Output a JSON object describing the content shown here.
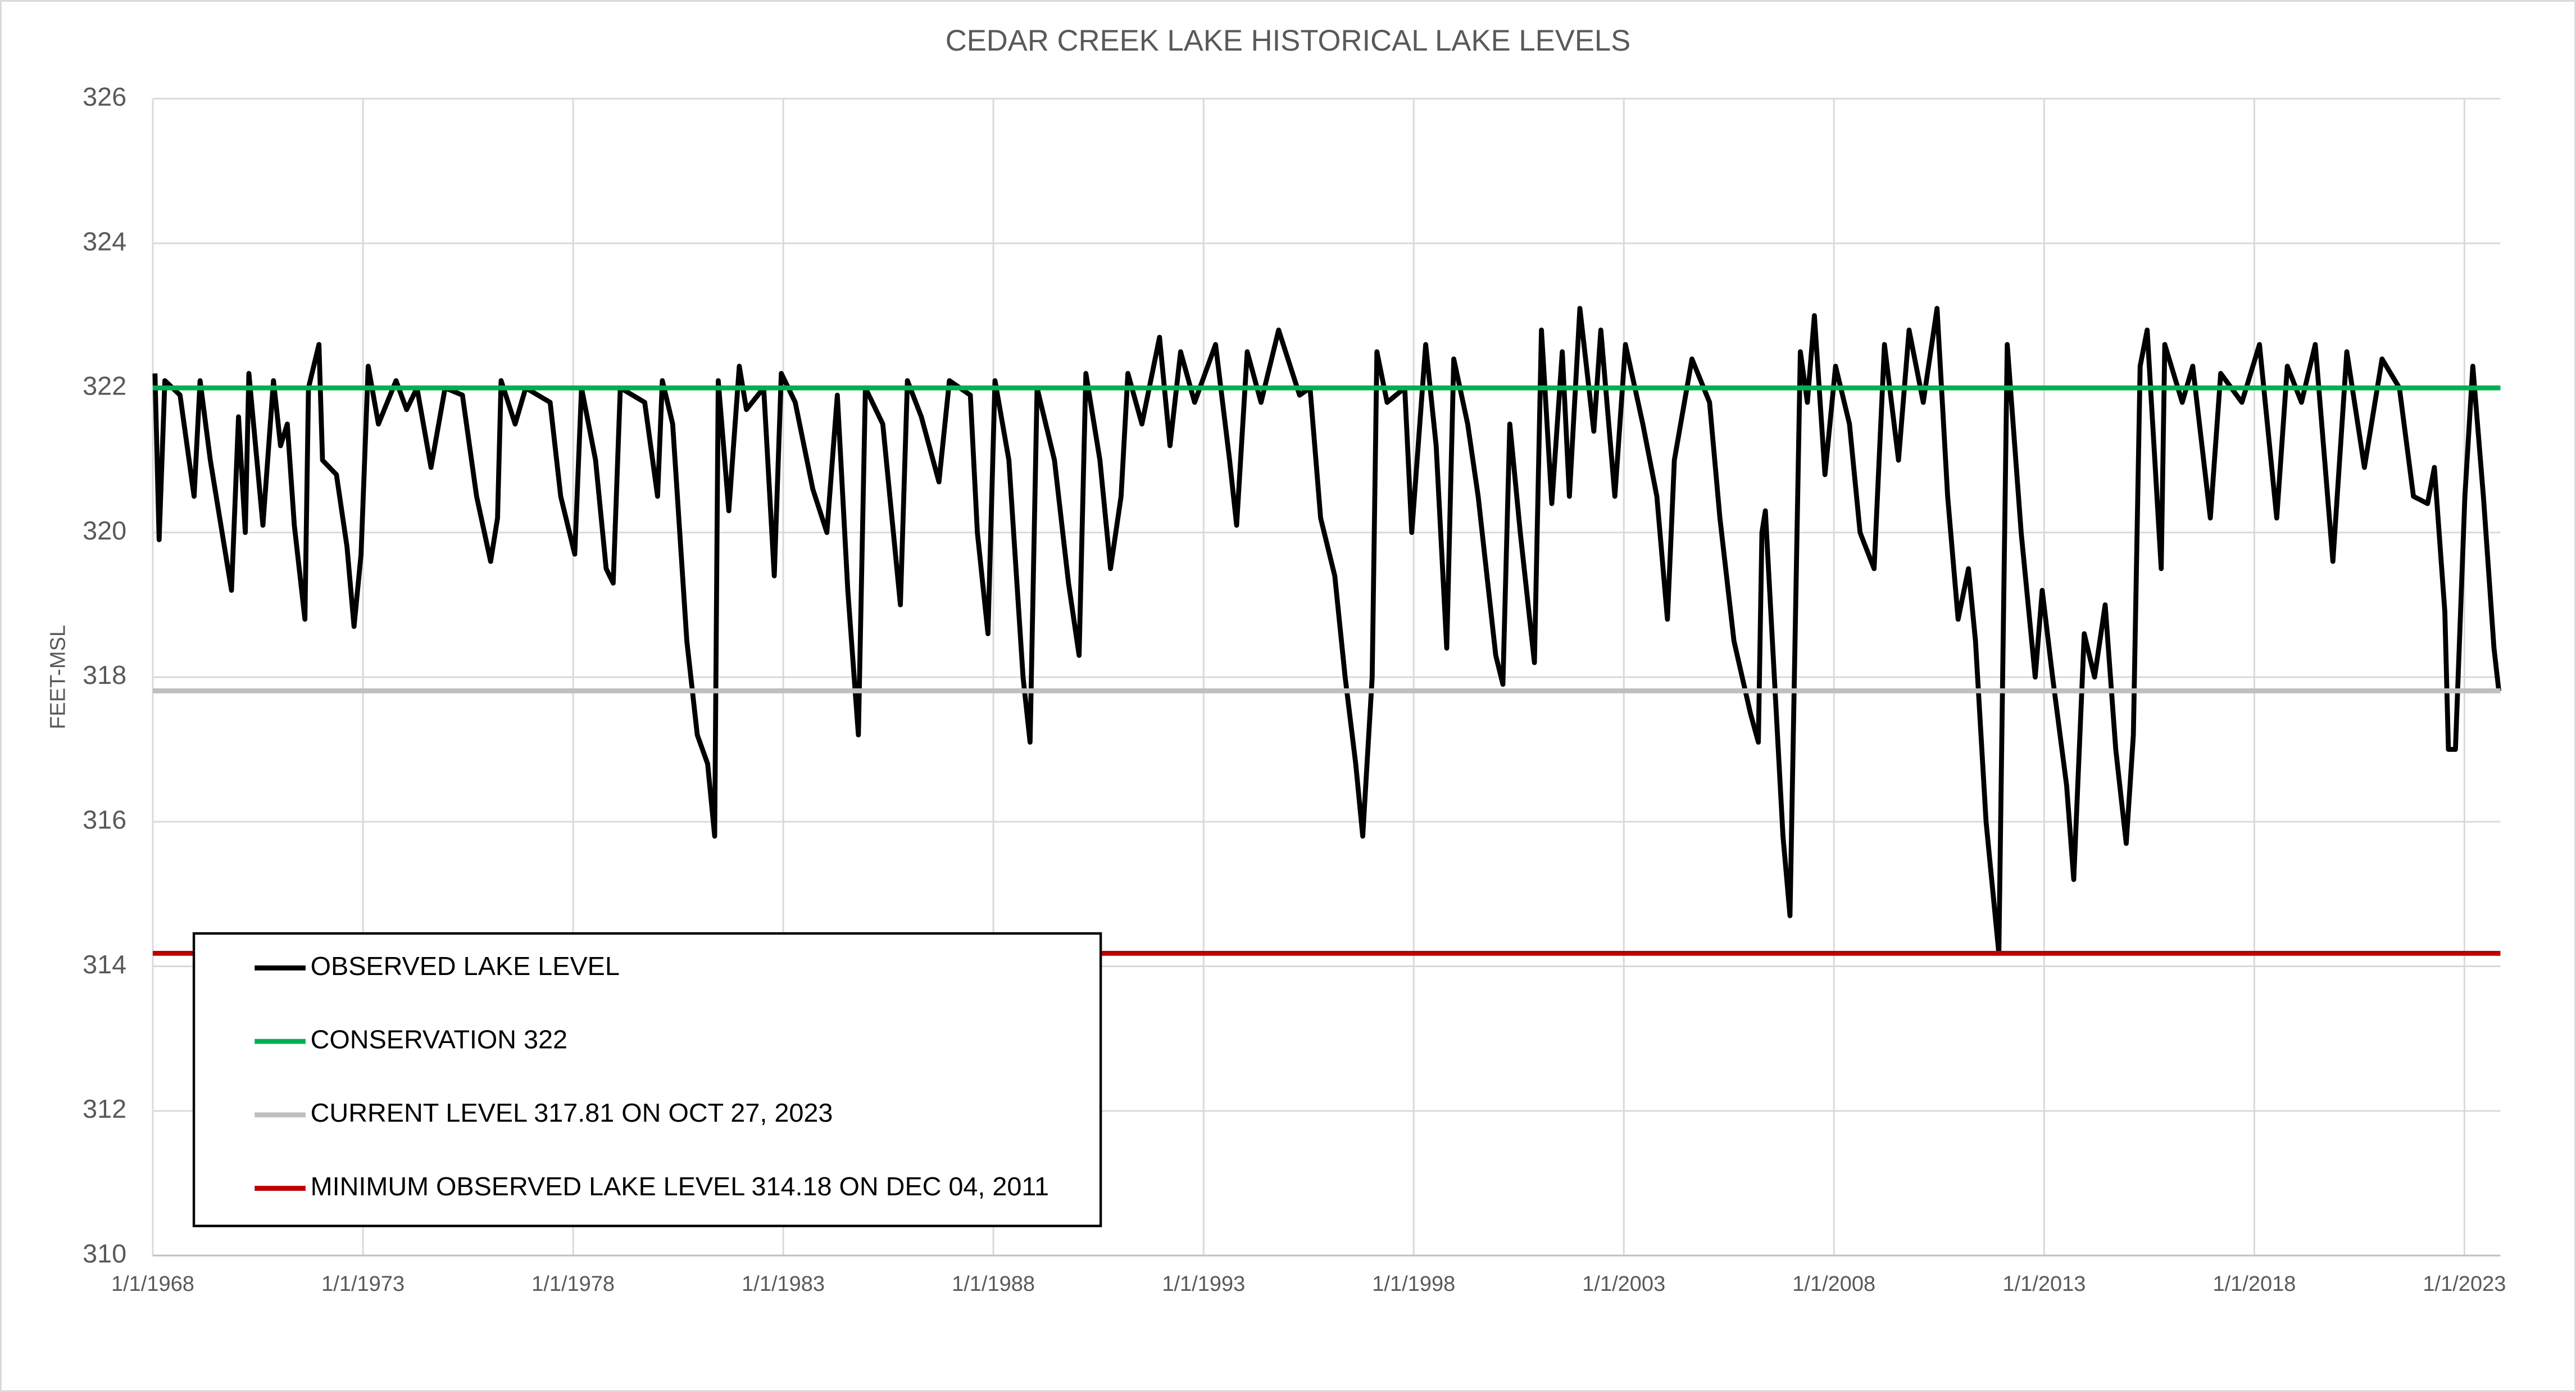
{
  "chart_data": {
    "type": "line",
    "title": "CEDAR CREEK LAKE HISTORICAL LAKE LEVELS",
    "y_label": "FEET-MSL",
    "grid": true,
    "legend_position": "bottom-left",
    "xlim": [
      "1968-01-01",
      "2023-11-10"
    ],
    "ylim": [
      310,
      326
    ],
    "yticks": [
      310,
      312,
      314,
      316,
      318,
      320,
      322,
      324,
      326
    ],
    "xticks": [
      {
        "value": "1968-01-01",
        "label": "1/1/1968"
      },
      {
        "value": "1973-01-01",
        "label": "1/1/1973"
      },
      {
        "value": "1978-01-01",
        "label": "1/1/1978"
      },
      {
        "value": "1983-01-01",
        "label": "1/1/1983"
      },
      {
        "value": "1988-01-01",
        "label": "1/1/1988"
      },
      {
        "value": "1993-01-01",
        "label": "1/1/1993"
      },
      {
        "value": "1998-01-01",
        "label": "1/1/1998"
      },
      {
        "value": "2003-01-01",
        "label": "1/1/2003"
      },
      {
        "value": "2008-01-01",
        "label": "1/1/2008"
      },
      {
        "value": "2013-01-01",
        "label": "1/1/2013"
      },
      {
        "value": "2018-01-01",
        "label": "1/1/2018"
      },
      {
        "value": "2023-01-01",
        "label": "1/1/2023"
      }
    ],
    "x": [
      "1968-01-20",
      "1968-02-25",
      "1968-04-15",
      "1968-08-25",
      "1968-12-25",
      "1969-02-15",
      "1969-05-15",
      "1969-11-15",
      "1970-01-15",
      "1970-03-15",
      "1970-04-15",
      "1970-08-15",
      "1970-11-15",
      "1971-01-15",
      "1971-03-15",
      "1971-05-15",
      "1971-08-15",
      "1971-09-15",
      "1971-12-15",
      "1972-01-15",
      "1972-05-15",
      "1972-08-15",
      "1972-10-15",
      "1972-12-15",
      "1973-02-15",
      "1973-05-15",
      "1973-10-15",
      "1974-01-15",
      "1974-04-15",
      "1974-08-15",
      "1974-12-15",
      "1975-05-15",
      "1975-09-15",
      "1976-01-15",
      "1976-03-15",
      "1976-04-15",
      "1976-08-15",
      "1976-11-15",
      "1977-06-15",
      "1977-09-15",
      "1978-01-15",
      "1978-03-15",
      "1978-07-15",
      "1978-10-15",
      "1978-12-15",
      "1979-02-15",
      "1979-09-15",
      "1980-01-05",
      "1980-02-15",
      "1980-05-15",
      "1980-09-15",
      "1980-12-15",
      "1981-03-15",
      "1981-05-15",
      "1981-06-15",
      "1981-09-15",
      "1981-12-15",
      "1982-02-15",
      "1982-07-15",
      "1982-10-15",
      "1982-12-15",
      "1983-04-15",
      "1983-09-15",
      "1984-01-15",
      "1984-04-15",
      "1984-07-15",
      "1984-10-15",
      "1984-12-15",
      "1985-05-15",
      "1985-08-15",
      "1985-10-15",
      "1985-12-15",
      "1986-04-15",
      "1986-09-15",
      "1986-12-15",
      "1987-06-15",
      "1987-08-15",
      "1987-11-15",
      "1988-01-15",
      "1988-05-15",
      "1988-09-15",
      "1988-11-15",
      "1989-01-15",
      "1989-06-15",
      "1989-10-15",
      "1990-01-15",
      "1990-03-15",
      "1990-07-15",
      "1990-10-15",
      "1991-01-15",
      "1991-03-15",
      "1991-07-15",
      "1991-12-15",
      "1992-03-15",
      "1992-06-15",
      "1992-10-15",
      "1993-04-15",
      "1993-08-15",
      "1993-10-15",
      "1994-01-15",
      "1994-05-15",
      "1994-10-15",
      "1995-04-15",
      "1995-07-15",
      "1995-10-15",
      "1996-02-15",
      "1996-05-15",
      "1996-08-15",
      "1996-10-15",
      "1997-01-05",
      "1997-02-15",
      "1997-05-15",
      "1997-10-15",
      "1997-12-15",
      "1998-04-15",
      "1998-07-15",
      "1998-10-15",
      "1998-12-15",
      "1999-04-15",
      "1999-07-15",
      "1999-12-15",
      "2000-02-15",
      "2000-04-15",
      "2000-07-15",
      "2000-11-15",
      "2001-01-15",
      "2001-04-15",
      "2001-07-15",
      "2001-09-15",
      "2001-12-15",
      "2002-04-15",
      "2002-06-15",
      "2002-10-15",
      "2003-01-15",
      "2003-06-15",
      "2003-10-15",
      "2004-01-15",
      "2004-03-15",
      "2004-08-15",
      "2005-01-15",
      "2005-04-15",
      "2005-08-15",
      "2006-01-05",
      "2006-03-15",
      "2006-04-15",
      "2006-05-15",
      "2006-07-15",
      "2006-10-15",
      "2006-12-15",
      "2007-03-15",
      "2007-05-15",
      "2007-07-15",
      "2007-10-15",
      "2008-01-15",
      "2008-05-15",
      "2008-08-15",
      "2008-12-15",
      "2009-03-15",
      "2009-07-15",
      "2009-10-15",
      "2010-02-15",
      "2010-06-15",
      "2010-09-15",
      "2010-12-15",
      "2011-03-15",
      "2011-05-15",
      "2011-08-15",
      "2011-12-04",
      "2012-02-15",
      "2012-06-15",
      "2012-10-15",
      "2012-12-15",
      "2013-03-15",
      "2013-07-15",
      "2013-09-15",
      "2013-12-15",
      "2014-03-15",
      "2014-06-15",
      "2014-09-15",
      "2014-12-15",
      "2015-02-15",
      "2015-04-15",
      "2015-06-15",
      "2015-10-15",
      "2015-11-15",
      "2016-04-15",
      "2016-07-15",
      "2016-12-15",
      "2017-03-15",
      "2017-09-15",
      "2018-02-15",
      "2018-07-15",
      "2018-10-15",
      "2019-02-15",
      "2019-06-15",
      "2019-11-15",
      "2020-03-15",
      "2020-08-15",
      "2021-01-15",
      "2021-06-15",
      "2021-10-15",
      "2022-02-15",
      "2022-04-15",
      "2022-07-15",
      "2022-08-15",
      "2022-10-15",
      "2023-01-05",
      "2023-03-15",
      "2023-06-15",
      "2023-09-15",
      "2023-10-27"
    ],
    "series": [
      {
        "name": "OBSERVED LAKE LEVEL",
        "color": "#000000",
        "values": [
          322.2,
          319.9,
          322.1,
          321.9,
          320.5,
          322.1,
          321.0,
          319.2,
          321.6,
          320.0,
          322.2,
          320.1,
          322.1,
          321.2,
          321.5,
          320.1,
          318.8,
          322.0,
          322.6,
          321.0,
          320.8,
          319.8,
          318.7,
          319.7,
          322.3,
          321.5,
          322.1,
          321.7,
          322.0,
          320.9,
          322.0,
          321.9,
          320.5,
          319.6,
          320.2,
          322.1,
          321.5,
          322.0,
          321.8,
          320.5,
          319.7,
          322.0,
          321.0,
          319.5,
          319.3,
          322.0,
          321.8,
          320.5,
          322.1,
          321.5,
          318.5,
          317.2,
          316.8,
          315.8,
          322.1,
          320.3,
          322.3,
          321.7,
          322.0,
          319.4,
          322.2,
          321.8,
          320.6,
          320.0,
          321.9,
          319.2,
          317.2,
          322.0,
          321.5,
          320.0,
          319.0,
          322.1,
          321.6,
          320.7,
          322.1,
          321.9,
          320.0,
          318.6,
          322.1,
          321.0,
          318.0,
          317.1,
          322.0,
          321.0,
          319.3,
          318.3,
          322.2,
          321.0,
          319.5,
          320.5,
          322.2,
          321.5,
          322.7,
          321.2,
          322.5,
          321.8,
          322.6,
          321.0,
          320.1,
          322.5,
          321.8,
          322.8,
          321.9,
          322.0,
          320.2,
          319.4,
          318.0,
          316.8,
          315.8,
          318.0,
          322.5,
          321.8,
          322.0,
          320.0,
          322.6,
          321.2,
          318.4,
          322.4,
          321.5,
          320.5,
          318.3,
          317.9,
          321.5,
          320.0,
          318.2,
          322.8,
          320.4,
          322.5,
          320.5,
          323.1,
          321.4,
          322.8,
          320.5,
          322.6,
          321.5,
          320.5,
          318.8,
          321.0,
          322.4,
          321.8,
          320.2,
          318.5,
          317.5,
          317.1,
          320.0,
          320.3,
          318.5,
          315.8,
          314.7,
          322.5,
          321.8,
          323.0,
          320.8,
          322.3,
          321.5,
          320.0,
          319.5,
          322.6,
          321.0,
          322.8,
          321.8,
          323.1,
          320.5,
          318.8,
          319.5,
          318.5,
          316.0,
          314.18,
          322.6,
          320.0,
          318.0,
          319.2,
          318.0,
          316.5,
          315.2,
          318.6,
          318.0,
          319.0,
          317.0,
          315.7,
          317.2,
          322.3,
          322.8,
          319.5,
          322.6,
          321.8,
          322.3,
          320.2,
          322.2,
          321.8,
          322.6,
          320.2,
          322.3,
          321.8,
          322.6,
          319.6,
          322.5,
          320.9,
          322.4,
          322.0,
          320.5,
          320.4,
          320.9,
          318.9,
          317.0,
          317.0,
          320.5,
          322.3,
          320.5,
          318.4,
          317.81
        ]
      }
    ],
    "reference_lines": [
      {
        "name": "CONSERVATION 322",
        "value": 322,
        "color": "#00b050"
      },
      {
        "name": "CURRENT LEVEL 317.81 ON OCT 27, 2023",
        "value": 317.81,
        "color": "#bfbfbf"
      },
      {
        "name": "MINIMUM OBSERVED LAKE LEVEL 314.18 ON DEC 04, 2011",
        "value": 314.18,
        "color": "#c00000"
      }
    ]
  }
}
